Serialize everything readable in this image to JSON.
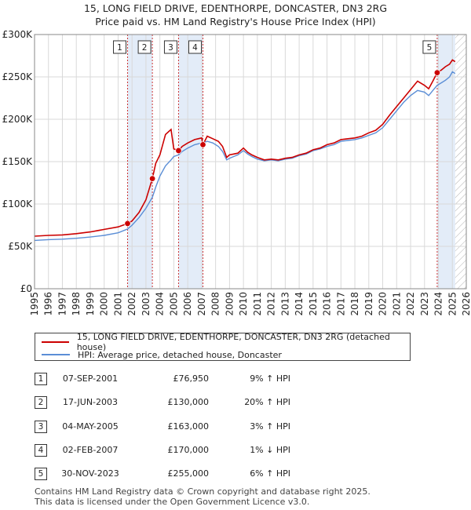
{
  "title_line1": "15, LONG FIELD DRIVE, EDENTHORPE, DONCASTER, DN3 2RG",
  "title_line2": "Price paid vs. HM Land Registry's House Price Index (HPI)",
  "legend": {
    "property_label": "15, LONG FIELD DRIVE, EDENTHORPE, DONCASTER, DN3 2RG (detached house)",
    "hpi_label": "HPI: Average price, detached house, Doncaster"
  },
  "colors": {
    "property": "#cc0000",
    "hpi": "#5b8ed6",
    "band": "#e3ecf8",
    "grid": "#d9d9d9",
    "marker_line": "#cc3333"
  },
  "transactions": [
    {
      "num": "1",
      "date": "07-SEP-2001",
      "price": "£76,950",
      "hpi": "9% ↑ HPI"
    },
    {
      "num": "2",
      "date": "17-JUN-2003",
      "price": "£130,000",
      "hpi": "20% ↑ HPI"
    },
    {
      "num": "3",
      "date": "04-MAY-2005",
      "price": "£163,000",
      "hpi": "3% ↑ HPI"
    },
    {
      "num": "4",
      "date": "02-FEB-2007",
      "price": "£170,000",
      "hpi": "1% ↓ HPI"
    },
    {
      "num": "5",
      "date": "30-NOV-2023",
      "price": "£255,000",
      "hpi": "6% ↑ HPI"
    }
  ],
  "footer_line1": "Contains HM Land Registry data © Crown copyright and database right 2025.",
  "footer_line2": "This data is licensed under the Open Government Licence v3.0.",
  "chart_data": {
    "type": "line",
    "title": "15, LONG FIELD DRIVE, EDENTHORPE, DONCASTER, DN3 2RG",
    "subtitle": "Price paid vs. HM Land Registry's House Price Index (HPI)",
    "xlabel": "",
    "ylabel": "",
    "xlim": [
      1995,
      2026
    ],
    "ylim": [
      0,
      300000
    ],
    "x_ticks": [
      1995,
      1996,
      1997,
      1998,
      1999,
      2000,
      2001,
      2002,
      2003,
      2004,
      2005,
      2006,
      2007,
      2008,
      2009,
      2010,
      2011,
      2012,
      2013,
      2014,
      2015,
      2016,
      2017,
      2018,
      2019,
      2020,
      2021,
      2022,
      2023,
      2024,
      2025,
      2026
    ],
    "y_ticks": [
      0,
      50000,
      100000,
      150000,
      200000,
      250000,
      300000
    ],
    "y_tick_labels": [
      "£0",
      "£50K",
      "£100K",
      "£150K",
      "£200K",
      "£250K",
      "£300K"
    ],
    "grid": true,
    "legend_position": "below",
    "sale_markers": [
      {
        "label": "1",
        "x": 2001.68,
        "y": 76950
      },
      {
        "label": "2",
        "x": 2003.46,
        "y": 130000
      },
      {
        "label": "3",
        "x": 2005.34,
        "y": 163000
      },
      {
        "label": "4",
        "x": 2007.09,
        "y": 170000
      },
      {
        "label": "5",
        "x": 2023.91,
        "y": 255000
      }
    ],
    "shaded_bands": [
      [
        2001.68,
        2003.46
      ],
      [
        2005.34,
        2007.09
      ],
      [
        2023.91,
        2025.2
      ]
    ],
    "future_hatch_from": 2025.2,
    "series": [
      {
        "name": "15, LONG FIELD DRIVE, EDENTHORPE, DONCASTER, DN3 2RG (detached house)",
        "x": [
          1995,
          1996,
          1997,
          1998,
          1999,
          2000,
          2001,
          2001.68,
          2002,
          2002.5,
          2003,
          2003.46,
          2003.7,
          2004,
          2004.4,
          2004.8,
          2005.0,
          2005.34,
          2005.6,
          2006,
          2006.5,
          2007,
          2007.09,
          2007.4,
          2007.8,
          2008.2,
          2008.5,
          2008.8,
          2009,
          2009.3,
          2009.6,
          2010,
          2010.3,
          2010.6,
          2011,
          2011.5,
          2012,
          2012.5,
          2013,
          2013.5,
          2014,
          2014.5,
          2015,
          2015.5,
          2016,
          2016.5,
          2017,
          2017.5,
          2018,
          2018.5,
          2019,
          2019.5,
          2020,
          2020.5,
          2021,
          2021.5,
          2022,
          2022.5,
          2023,
          2023.3,
          2023.6,
          2023.91,
          2024.2,
          2024.5,
          2024.8,
          2025,
          2025.2
        ],
        "y": [
          62000,
          63000,
          63500,
          65000,
          67000,
          70000,
          73000,
          76950,
          80000,
          90000,
          105000,
          130000,
          148000,
          158000,
          182000,
          188000,
          165000,
          163000,
          168000,
          172000,
          176000,
          178000,
          170000,
          180000,
          177000,
          174000,
          168000,
          155000,
          158000,
          159000,
          160000,
          166000,
          161000,
          158000,
          155000,
          152000,
          153000,
          152000,
          154000,
          155000,
          158000,
          160000,
          164000,
          166000,
          170000,
          172000,
          176000,
          177000,
          178000,
          180000,
          184000,
          187000,
          194000,
          205000,
          215000,
          225000,
          235000,
          245000,
          240000,
          236000,
          245000,
          255000,
          258000,
          262000,
          265000,
          270000,
          268000
        ]
      },
      {
        "name": "HPI: Average price, detached house, Doncaster",
        "x": [
          1995,
          1996,
          1997,
          1998,
          1999,
          2000,
          2001,
          2001.68,
          2002,
          2002.5,
          2003,
          2003.46,
          2003.7,
          2004,
          2004.4,
          2004.8,
          2005.0,
          2005.34,
          2005.6,
          2006,
          2006.5,
          2007,
          2007.09,
          2007.4,
          2007.8,
          2008.2,
          2008.5,
          2008.8,
          2009,
          2009.3,
          2009.6,
          2010,
          2010.3,
          2010.6,
          2011,
          2011.5,
          2012,
          2012.5,
          2013,
          2013.5,
          2014,
          2014.5,
          2015,
          2015.5,
          2016,
          2016.5,
          2017,
          2017.5,
          2018,
          2018.5,
          2019,
          2019.5,
          2020,
          2020.5,
          2021,
          2021.5,
          2022,
          2022.5,
          2023,
          2023.3,
          2023.6,
          2023.91,
          2024.2,
          2024.5,
          2024.8,
          2025,
          2025.2
        ],
        "y": [
          57000,
          58000,
          58500,
          59500,
          61000,
          63000,
          66000,
          70500,
          75000,
          84000,
          95000,
          108000,
          120000,
          133000,
          145000,
          152000,
          156000,
          158000,
          162000,
          166000,
          170000,
          172000,
          172000,
          174000,
          172000,
          168000,
          162000,
          152000,
          154000,
          156000,
          158000,
          163000,
          159000,
          156000,
          153000,
          151000,
          152000,
          151000,
          153000,
          154000,
          157000,
          159000,
          163000,
          165000,
          168000,
          170000,
          174000,
          175000,
          176000,
          178000,
          181000,
          184000,
          190000,
          200000,
          210000,
          220000,
          228000,
          234000,
          232000,
          228000,
          234000,
          240000,
          243000,
          246000,
          250000,
          256000,
          254000
        ]
      }
    ]
  }
}
